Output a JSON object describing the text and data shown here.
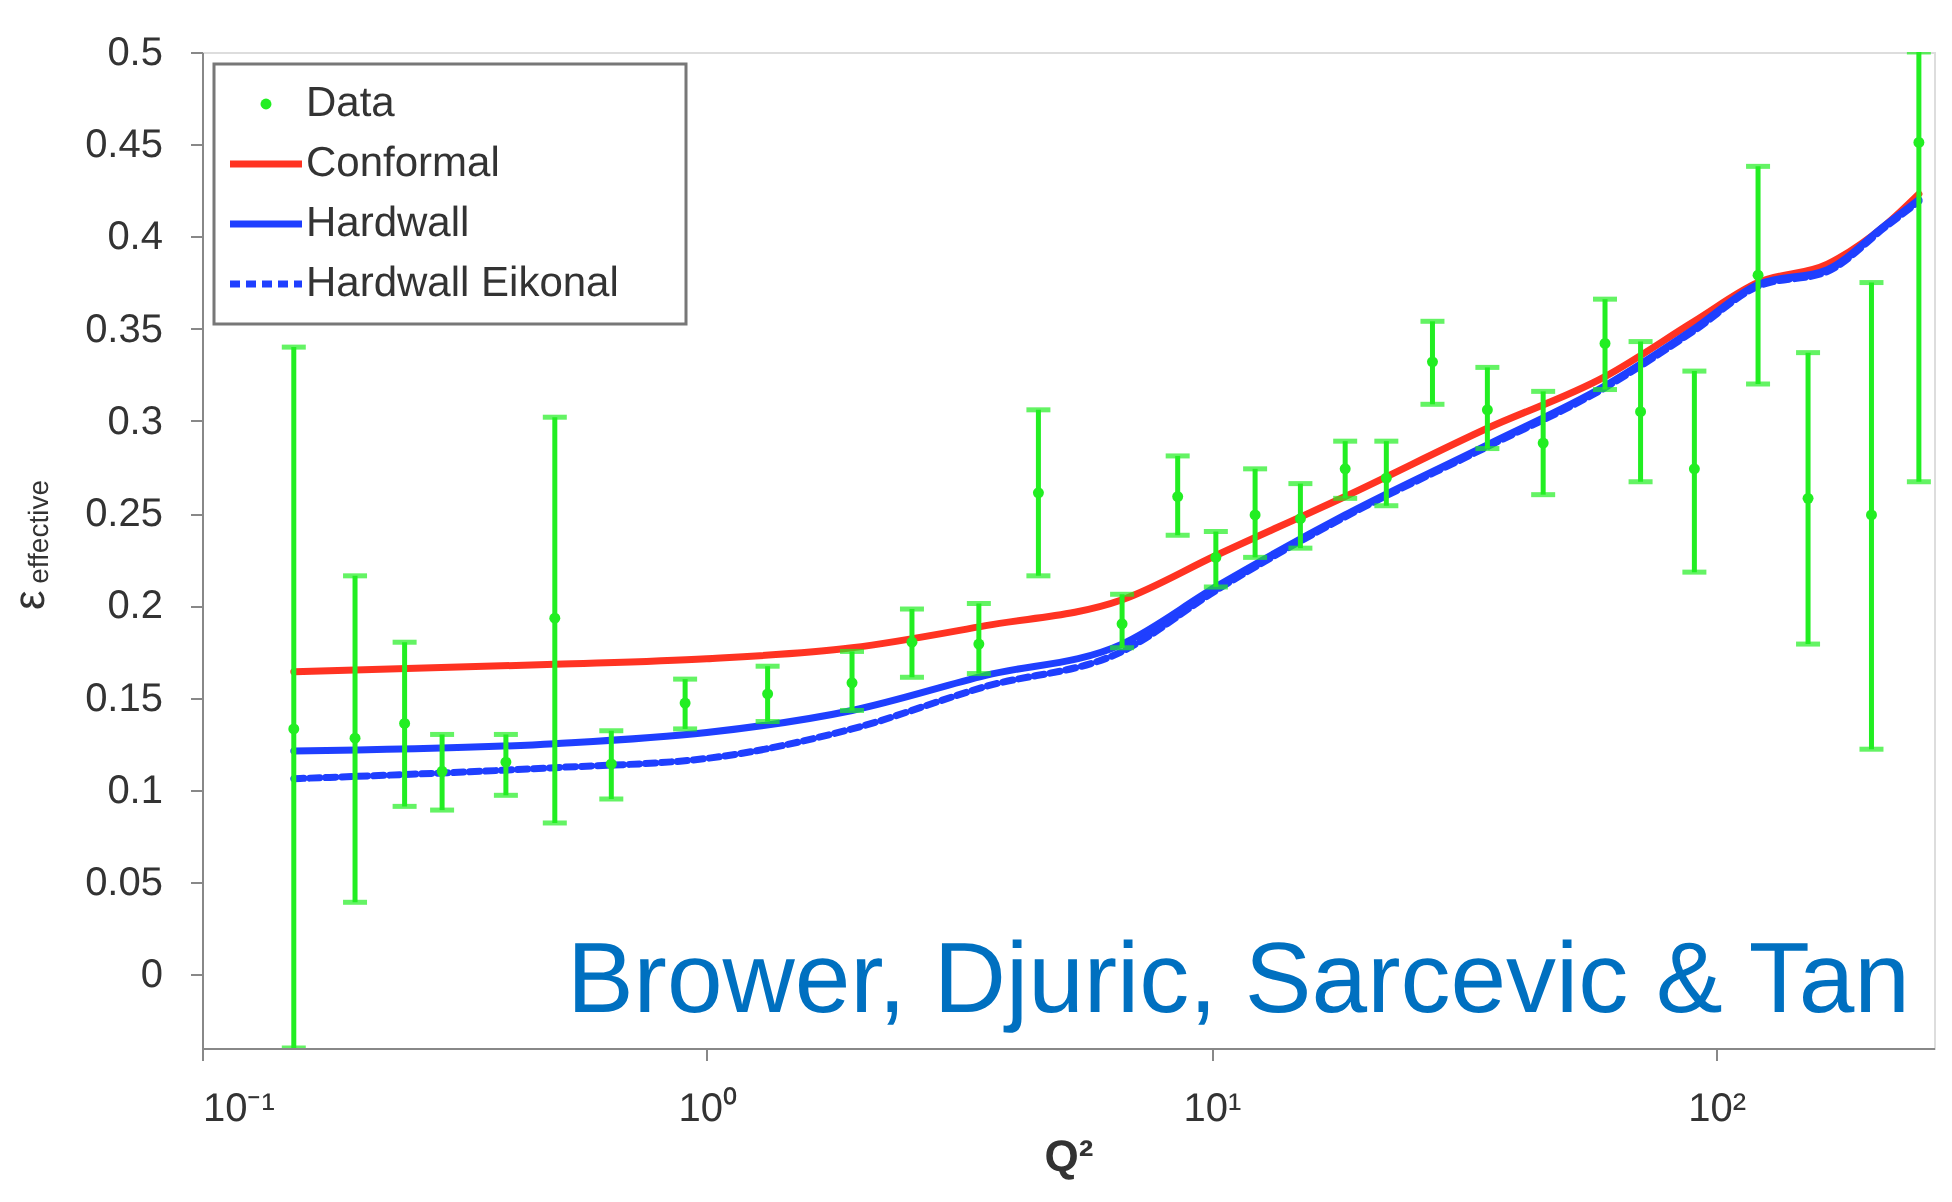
{
  "chart_data": {
    "type": "scatter",
    "xlabel": "Q²",
    "ylabel": "ε$_{effective}$",
    "log": "x",
    "xlim": [
      0.1,
      270
    ],
    "ylim": [
      -0.04,
      0.5
    ],
    "xticks": [
      {
        "value": 0.1,
        "label": "10⁻¹"
      },
      {
        "value": 1,
        "label": "10⁰"
      },
      {
        "value": 10,
        "label": "10¹"
      },
      {
        "value": 100,
        "label": "10²"
      }
    ],
    "yticks": [
      0,
      0.05,
      0.1,
      0.15,
      0.2,
      0.25,
      0.3,
      0.35,
      0.4,
      0.45,
      0.5
    ],
    "grid": false,
    "legend": "top left",
    "series": [
      {
        "name": "Data",
        "marker": "circle",
        "color": "#22ee22",
        "x": [
          0.152,
          0.201,
          0.252,
          0.299,
          0.4,
          0.5,
          0.647,
          0.906,
          1.32,
          1.94,
          2.55,
          3.46,
          4.54,
          6.65,
          8.57,
          10.2,
          12.2,
          15.0,
          18.4,
          22.2,
          27.4,
          35.2,
          45.4,
          60.2,
          70.8,
          90.5,
          121,
          152,
          203,
          252
        ],
        "values": [
          0.133,
          0.128,
          0.136,
          0.11,
          0.115,
          0.193,
          0.114,
          0.147,
          0.152,
          0.158,
          0.18,
          0.179,
          0.261,
          0.19,
          0.259,
          0.226,
          0.249,
          0.247,
          0.274,
          0.269,
          0.332,
          0.306,
          0.288,
          0.342,
          0.305,
          0.274,
          0.379,
          0.258,
          0.249,
          0.451
        ],
        "errors": [
          [
            -0.04,
            0.34
          ],
          [
            0.039,
            0.216
          ],
          [
            0.091,
            0.18
          ],
          [
            0.089,
            0.13
          ],
          [
            0.097,
            0.13
          ],
          [
            0.082,
            0.302
          ],
          [
            0.095,
            0.132
          ],
          [
            0.133,
            0.16
          ],
          [
            0.137,
            0.167
          ],
          [
            0.143,
            0.175
          ],
          [
            0.161,
            0.198
          ],
          [
            0.163,
            0.201
          ],
          [
            0.216,
            0.306
          ],
          [
            0.177,
            0.206
          ],
          [
            0.238,
            0.281
          ],
          [
            0.21,
            0.24
          ],
          [
            0.226,
            0.274
          ],
          [
            0.231,
            0.266
          ],
          [
            0.258,
            0.289
          ],
          [
            0.254,
            0.289
          ],
          [
            0.309,
            0.354
          ],
          [
            0.285,
            0.329
          ],
          [
            0.26,
            0.316
          ],
          [
            0.317,
            0.366
          ],
          [
            0.267,
            0.343
          ],
          [
            0.218,
            0.327
          ],
          [
            0.32,
            0.438
          ],
          [
            0.179,
            0.337
          ],
          [
            0.122,
            0.375
          ],
          [
            0.267,
            0.5
          ]
        ]
      },
      {
        "name": "Conformal",
        "type": "line",
        "line_style": "solid",
        "color": "#ff3322",
        "x": [
          0.152,
          0.5,
          1.0,
          1.94,
          3.57,
          6.65,
          10.2,
          18.4,
          35.2,
          60.2,
          90.5,
          121,
          166,
          216,
          252
        ],
        "values": [
          0.164,
          0.168,
          0.171,
          0.177,
          0.189,
          0.203,
          0.227,
          0.259,
          0.296,
          0.324,
          0.354,
          0.375,
          0.385,
          0.406,
          0.423
        ]
      },
      {
        "name": "Hardwall",
        "type": "line",
        "line_style": "solid",
        "color": "#1f3fff",
        "x": [
          0.152,
          0.5,
          1.0,
          1.94,
          3.57,
          6.65,
          10.2,
          18.4,
          35.2,
          60.2,
          90.5,
          121,
          166,
          216,
          252
        ],
        "values": [
          0.121,
          0.125,
          0.131,
          0.143,
          0.162,
          0.179,
          0.21,
          0.249,
          0.287,
          0.319,
          0.35,
          0.374,
          0.382,
          0.406,
          0.42
        ]
      },
      {
        "name": "Hardwall Eikonal",
        "type": "line",
        "line_style": "dashed",
        "color": "#1f3fff",
        "x": [
          0.152,
          0.5,
          1.0,
          1.94,
          3.57,
          6.65,
          10.2,
          18.4,
          35.2,
          60.2,
          90.5,
          121,
          166,
          216,
          252
        ],
        "values": [
          0.106,
          0.112,
          0.117,
          0.133,
          0.156,
          0.175,
          0.208,
          0.248,
          0.286,
          0.318,
          0.349,
          0.373,
          0.381,
          0.405,
          0.419
        ]
      }
    ],
    "annotations": [
      "Brower, Djuric, Sarcevic & Tan"
    ]
  }
}
